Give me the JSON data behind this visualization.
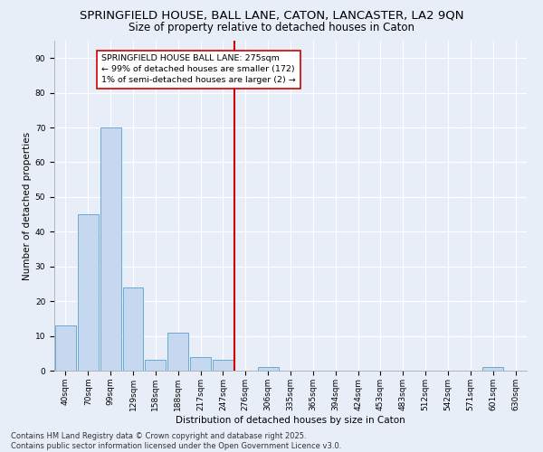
{
  "title_line1": "SPRINGFIELD HOUSE, BALL LANE, CATON, LANCASTER, LA2 9QN",
  "title_line2": "Size of property relative to detached houses in Caton",
  "xlabel": "Distribution of detached houses by size in Caton",
  "ylabel": "Number of detached properties",
  "categories": [
    "40sqm",
    "70sqm",
    "99sqm",
    "129sqm",
    "158sqm",
    "188sqm",
    "217sqm",
    "247sqm",
    "276sqm",
    "306sqm",
    "335sqm",
    "365sqm",
    "394sqm",
    "424sqm",
    "453sqm",
    "483sqm",
    "512sqm",
    "542sqm",
    "571sqm",
    "601sqm",
    "630sqm"
  ],
  "values": [
    13,
    45,
    70,
    24,
    3,
    11,
    4,
    3,
    0,
    1,
    0,
    0,
    0,
    0,
    0,
    0,
    0,
    0,
    0,
    1,
    0
  ],
  "bar_color": "#c5d8f0",
  "bar_edge_color": "#6aaad4",
  "vline_x_index": 8,
  "vline_color": "#cc0000",
  "annotation_text": "SPRINGFIELD HOUSE BALL LANE: 275sqm\n← 99% of detached houses are smaller (172)\n1% of semi-detached houses are larger (2) →",
  "annotation_box_color": "#ffffff",
  "annotation_border_color": "#cc0000",
  "annotation_fontsize": 6.8,
  "ylim": [
    0,
    95
  ],
  "yticks": [
    0,
    10,
    20,
    30,
    40,
    50,
    60,
    70,
    80,
    90
  ],
  "background_color": "#e8eef8",
  "grid_color": "#ffffff",
  "footer_line1": "Contains HM Land Registry data © Crown copyright and database right 2025.",
  "footer_line2": "Contains public sector information licensed under the Open Government Licence v3.0.",
  "title_fontsize": 9.5,
  "subtitle_fontsize": 8.5,
  "axis_label_fontsize": 7.5,
  "tick_fontsize": 6.5,
  "footer_fontsize": 6.0
}
